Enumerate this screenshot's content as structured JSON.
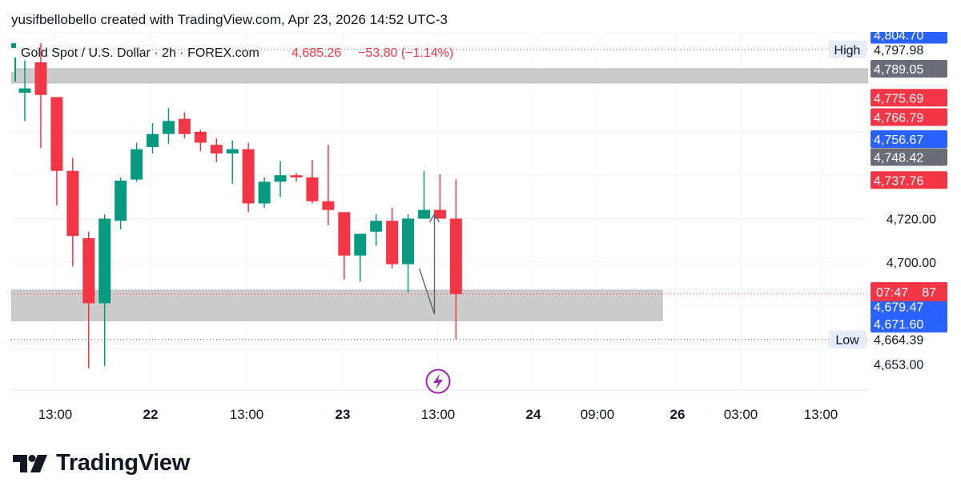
{
  "header": {
    "caption": "yusifbellobello created with TradingView.com, Apr 23, 2026 14:52 UTC-3"
  },
  "symbol": {
    "name": "Gold Spot / U.S. Dollar · 2h · FOREX.com",
    "price": "4,685.26",
    "change": "−53.80 (−1.14%)"
  },
  "logo": {
    "text": "TradingView",
    "icon": "tradingview-logo-icon"
  },
  "icons": {
    "event": "lightning-icon"
  },
  "colors": {
    "up": "#089981",
    "down": "#f23645",
    "zone": "#c9c9c9",
    "blue": "#2962ff",
    "gray_tag": "#6a6d78",
    "grid": "#f0f3fa"
  },
  "chart_data": {
    "type": "candlestick",
    "ylim": [
      4641,
      4806
    ],
    "y_ticks": [
      "4,720.00",
      "4,700.00"
    ],
    "x_ticks": [
      {
        "label": "13:00",
        "bold": false
      },
      {
        "label": "22",
        "bold": true
      },
      {
        "label": "13:00",
        "bold": false
      },
      {
        "label": "23",
        "bold": true
      },
      {
        "label": "13:00",
        "bold": false
      },
      {
        "label": "24",
        "bold": true
      },
      {
        "label": "09:00",
        "bold": false
      },
      {
        "label": "26",
        "bold": true
      },
      {
        "label": "03:00",
        "bold": false
      },
      {
        "label": "13:00",
        "bold": false
      }
    ],
    "candles": [
      {
        "o": 4778.0,
        "h": 4793.0,
        "l": 4765.0,
        "c": 4780.0
      },
      {
        "o": 4792.0,
        "h": 4801.0,
        "l": 4752.5,
        "c": 4777.0
      },
      {
        "o": 4776.0,
        "h": 4776.0,
        "l": 4726.0,
        "c": 4742.0
      },
      {
        "o": 4742.0,
        "h": 4748.0,
        "l": 4698.0,
        "c": 4712.0
      },
      {
        "o": 4711.0,
        "h": 4714.0,
        "l": 4651.0,
        "c": 4681.0
      },
      {
        "o": 4681.0,
        "h": 4722.0,
        "l": 4652.0,
        "c": 4720.0
      },
      {
        "o": 4719.0,
        "h": 4739.0,
        "l": 4715.0,
        "c": 4737.5
      },
      {
        "o": 4738.0,
        "h": 4755.0,
        "l": 4737.0,
        "c": 4752.0
      },
      {
        "o": 4753.0,
        "h": 4764.0,
        "l": 4750.0,
        "c": 4759.0
      },
      {
        "o": 4759.0,
        "h": 4771.0,
        "l": 4754.5,
        "c": 4765.0
      },
      {
        "o": 4766.0,
        "h": 4769.0,
        "l": 4757.0,
        "c": 4759.0
      },
      {
        "o": 4760.0,
        "h": 4761.0,
        "l": 4751.0,
        "c": 4755.0
      },
      {
        "o": 4754.0,
        "h": 4757.0,
        "l": 4746.0,
        "c": 4750.0
      },
      {
        "o": 4750.0,
        "h": 4756.0,
        "l": 4736.0,
        "c": 4752.0
      },
      {
        "o": 4752.0,
        "h": 4755.0,
        "l": 4723.0,
        "c": 4727.0
      },
      {
        "o": 4727.0,
        "h": 4739.0,
        "l": 4725.0,
        "c": 4737.0
      },
      {
        "o": 4737.0,
        "h": 4746.5,
        "l": 4730.0,
        "c": 4740.0
      },
      {
        "o": 4740.0,
        "h": 4741.0,
        "l": 4737.0,
        "c": 4739.0
      },
      {
        "o": 4739.0,
        "h": 4747.0,
        "l": 4727.0,
        "c": 4728.0
      },
      {
        "o": 4728.0,
        "h": 4754.0,
        "l": 4717.0,
        "c": 4724.0
      },
      {
        "o": 4723.0,
        "h": 4723.0,
        "l": 4692.0,
        "c": 4703.0
      },
      {
        "o": 4703.0,
        "h": 4713.0,
        "l": 4691.0,
        "c": 4713.0
      },
      {
        "o": 4714.0,
        "h": 4722.0,
        "l": 4707.5,
        "c": 4719.0
      },
      {
        "o": 4719.0,
        "h": 4725.0,
        "l": 4697.0,
        "c": 4699.0
      },
      {
        "o": 4699.0,
        "h": 4722.0,
        "l": 4686.0,
        "c": 4720.0
      },
      {
        "o": 4720.0,
        "h": 4742.0,
        "l": 4720.0,
        "c": 4724.0
      },
      {
        "o": 4724.0,
        "h": 4740.5,
        "l": 4720.0,
        "c": 4720.0
      },
      {
        "o": 4720.0,
        "h": 4738.0,
        "l": 4664.39,
        "c": 4685.26
      }
    ],
    "zones": [
      {
        "from": 4789.05,
        "to": 4782.5
      },
      {
        "from": 4687.0,
        "to": 4673.0
      }
    ],
    "price_tags": [
      {
        "value": 4804.7,
        "label": "4,804.70",
        "style": "blue"
      },
      {
        "value": 4797.98,
        "label": "4,797.98",
        "style": "plain"
      },
      {
        "value": 4789.05,
        "label": "4,789.05",
        "style": "gray"
      },
      {
        "value": 4775.69,
        "label": "4,775.69",
        "style": "red"
      },
      {
        "value": 4766.79,
        "label": "4,766.79",
        "style": "red"
      },
      {
        "value": 4756.67,
        "label": "4,756.67",
        "style": "blue"
      },
      {
        "value": 4748.42,
        "label": "4,748.42",
        "style": "gray"
      },
      {
        "value": 4737.76,
        "label": "4,737.76",
        "style": "red"
      },
      {
        "value": 4679.47,
        "label": "4,679.47",
        "style": "blue"
      },
      {
        "value": 4671.6,
        "label": "4,671.60",
        "style": "blue"
      },
      {
        "value": 4664.39,
        "label": "4,664.39",
        "style": "plain"
      },
      {
        "value": 4653.0,
        "label": "4,653.00",
        "style": "plain"
      }
    ],
    "last_price": {
      "value": 4685.26,
      "countdown": "07:47",
      "partial": "87"
    },
    "high": {
      "label": "High",
      "value": 4797.98
    },
    "low": {
      "label": "Low",
      "value": 4664.39
    }
  }
}
